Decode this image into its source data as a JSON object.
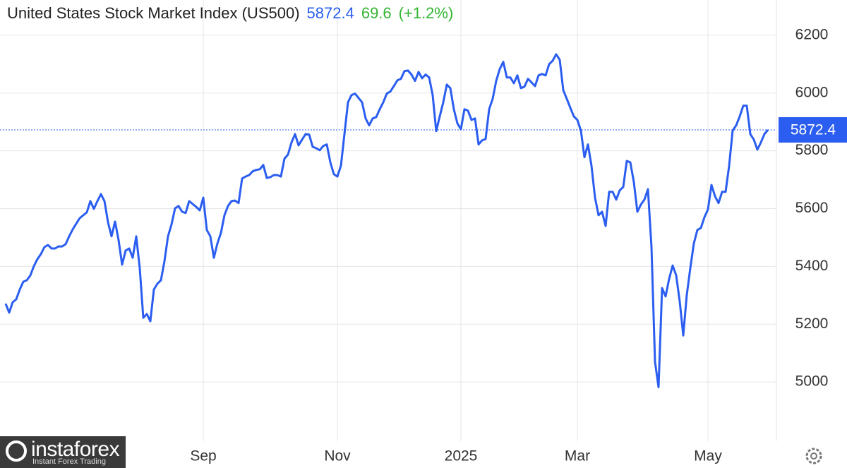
{
  "chart_data": {
    "type": "line",
    "title": "United States Stock Market Index (US500)",
    "price": 5872.4,
    "change": 69.6,
    "change_percent": "(+1.2%)",
    "color": "#2b5ef0",
    "price_color": "#2b5ef0",
    "change_color": "#33b533",
    "grid": true,
    "ylim": [
      4795,
      6322
    ],
    "yticks": [
      5000,
      5200,
      5400,
      5600,
      5800,
      6000,
      6200
    ],
    "categories": [
      null,
      null,
      null,
      null,
      null,
      null,
      null,
      null,
      null,
      null,
      null,
      null,
      null,
      null,
      null,
      null,
      null,
      null,
      null,
      null,
      null,
      null,
      null,
      null,
      null,
      null,
      null,
      null,
      null,
      null,
      null,
      null,
      null,
      null,
      null,
      null,
      null,
      null,
      null,
      null,
      null,
      null,
      null,
      null,
      null,
      null,
      null,
      null,
      null,
      null,
      null,
      null,
      null,
      null,
      null,
      null,
      "Sep",
      null,
      null,
      null,
      null,
      null,
      null,
      null,
      null,
      null,
      null,
      null,
      null,
      null,
      null,
      null,
      null,
      null,
      null,
      null,
      null,
      null,
      null,
      null,
      null,
      null,
      null,
      null,
      null,
      null,
      null,
      null,
      null,
      null,
      null,
      null,
      null,
      null,
      "Nov",
      null,
      null,
      null,
      null,
      null,
      null,
      null,
      null,
      null,
      null,
      null,
      null,
      null,
      null,
      null,
      null,
      null,
      null,
      null,
      null,
      null,
      null,
      null,
      null,
      null,
      null,
      null,
      null,
      null,
      null,
      null,
      null,
      null,
      null,
      "2025",
      null,
      null,
      null,
      null,
      null,
      null,
      null,
      null,
      null,
      null,
      null,
      null,
      null,
      null,
      null,
      null,
      null,
      null,
      null,
      null,
      null,
      null,
      null,
      null,
      null,
      null,
      null,
      null,
      null,
      null,
      null,
      null,
      "Mar",
      null,
      null,
      null,
      null,
      null,
      null,
      null,
      null,
      null,
      null,
      null,
      null,
      null,
      null,
      null,
      null,
      null,
      null,
      null,
      null,
      null,
      null,
      null,
      null,
      null,
      null,
      null,
      null,
      null,
      null,
      null,
      null,
      null,
      null,
      null,
      null,
      "May",
      null,
      null,
      null,
      null,
      null,
      null,
      null,
      null,
      null,
      null,
      null,
      null,
      null,
      null,
      null,
      null,
      null
    ],
    "values": [
      5271,
      5240,
      5276,
      5286,
      5320,
      5347,
      5352,
      5369,
      5401,
      5425,
      5443,
      5467,
      5474,
      5462,
      5462,
      5469,
      5469,
      5477,
      5504,
      5528,
      5548,
      5567,
      5577,
      5587,
      5626,
      5599,
      5626,
      5650,
      5626,
      5553,
      5504,
      5555,
      5491,
      5406,
      5455,
      5462,
      5430,
      5504,
      5394,
      5222,
      5235,
      5210,
      5320,
      5340,
      5352,
      5418,
      5504,
      5545,
      5601,
      5609,
      5589,
      5585,
      5626,
      5616,
      5606,
      5594,
      5638,
      5526,
      5504,
      5430,
      5479,
      5516,
      5577,
      5609,
      5626,
      5628,
      5619,
      5704,
      5711,
      5716,
      5729,
      5734,
      5736,
      5751,
      5706,
      5709,
      5716,
      5716,
      5711,
      5773,
      5787,
      5829,
      5858,
      5819,
      5839,
      5858,
      5856,
      5814,
      5809,
      5802,
      5817,
      5822,
      5760,
      5719,
      5711,
      5748,
      5858,
      5968,
      5993,
      5998,
      5983,
      5968,
      5912,
      5888,
      5912,
      5917,
      5944,
      5968,
      5998,
      6005,
      6024,
      6044,
      6049,
      6076,
      6078,
      6064,
      6042,
      6073,
      6051,
      6064,
      6054,
      5993,
      5868,
      5919,
      5968,
      6029,
      6017,
      5944,
      5895,
      5875,
      5944,
      5939,
      5907,
      5912,
      5822,
      5836,
      5841,
      5944,
      5980,
      6042,
      6083,
      6108,
      6054,
      6054,
      6034,
      6061,
      6017,
      6022,
      6049,
      6037,
      6024,
      6061,
      6066,
      6061,
      6100,
      6112,
      6134,
      6115,
      6010,
      5980,
      5949,
      5919,
      5907,
      5870,
      5778,
      5822,
      5748,
      5638,
      5577,
      5589,
      5540,
      5658,
      5658,
      5631,
      5663,
      5675,
      5765,
      5760,
      5692,
      5589,
      5614,
      5631,
      5667,
      5467,
      5070,
      4982,
      5325,
      5296,
      5357,
      5403,
      5369,
      5279,
      5161,
      5301,
      5394,
      5479,
      5526,
      5533,
      5570,
      5597,
      5682,
      5643,
      5619,
      5658,
      5658,
      5748,
      5870,
      5888,
      5919,
      5956,
      5956,
      5858,
      5839,
      5804,
      5829,
      5858,
      5872.4
    ]
  },
  "watermark": {
    "brand": "instaforex",
    "tagline": "Instant Forex Trading"
  }
}
